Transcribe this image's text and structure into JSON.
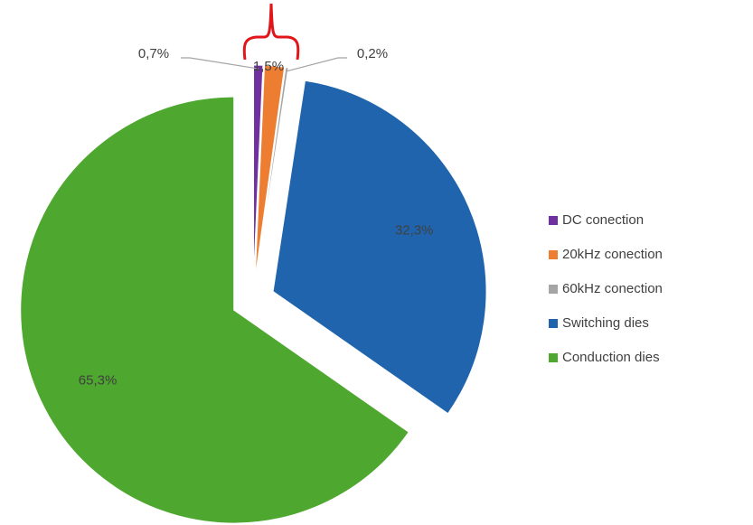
{
  "chart_data": {
    "type": "pie",
    "categories": [
      "DC conection",
      "20kHz conection",
      "60kHz conection",
      "Switching dies",
      "Conduction dies"
    ],
    "values": [
      0.7,
      1.5,
      0.2,
      32.3,
      65.3
    ],
    "value_labels": [
      "0,7%",
      "1,5%",
      "0,2%",
      "32,3%",
      "65,3%"
    ],
    "colors": [
      "#7030a0",
      "#ed7d31",
      "#a5a5a5",
      "#1f64ad",
      "#4ea72e"
    ],
    "legend": "right"
  }
}
